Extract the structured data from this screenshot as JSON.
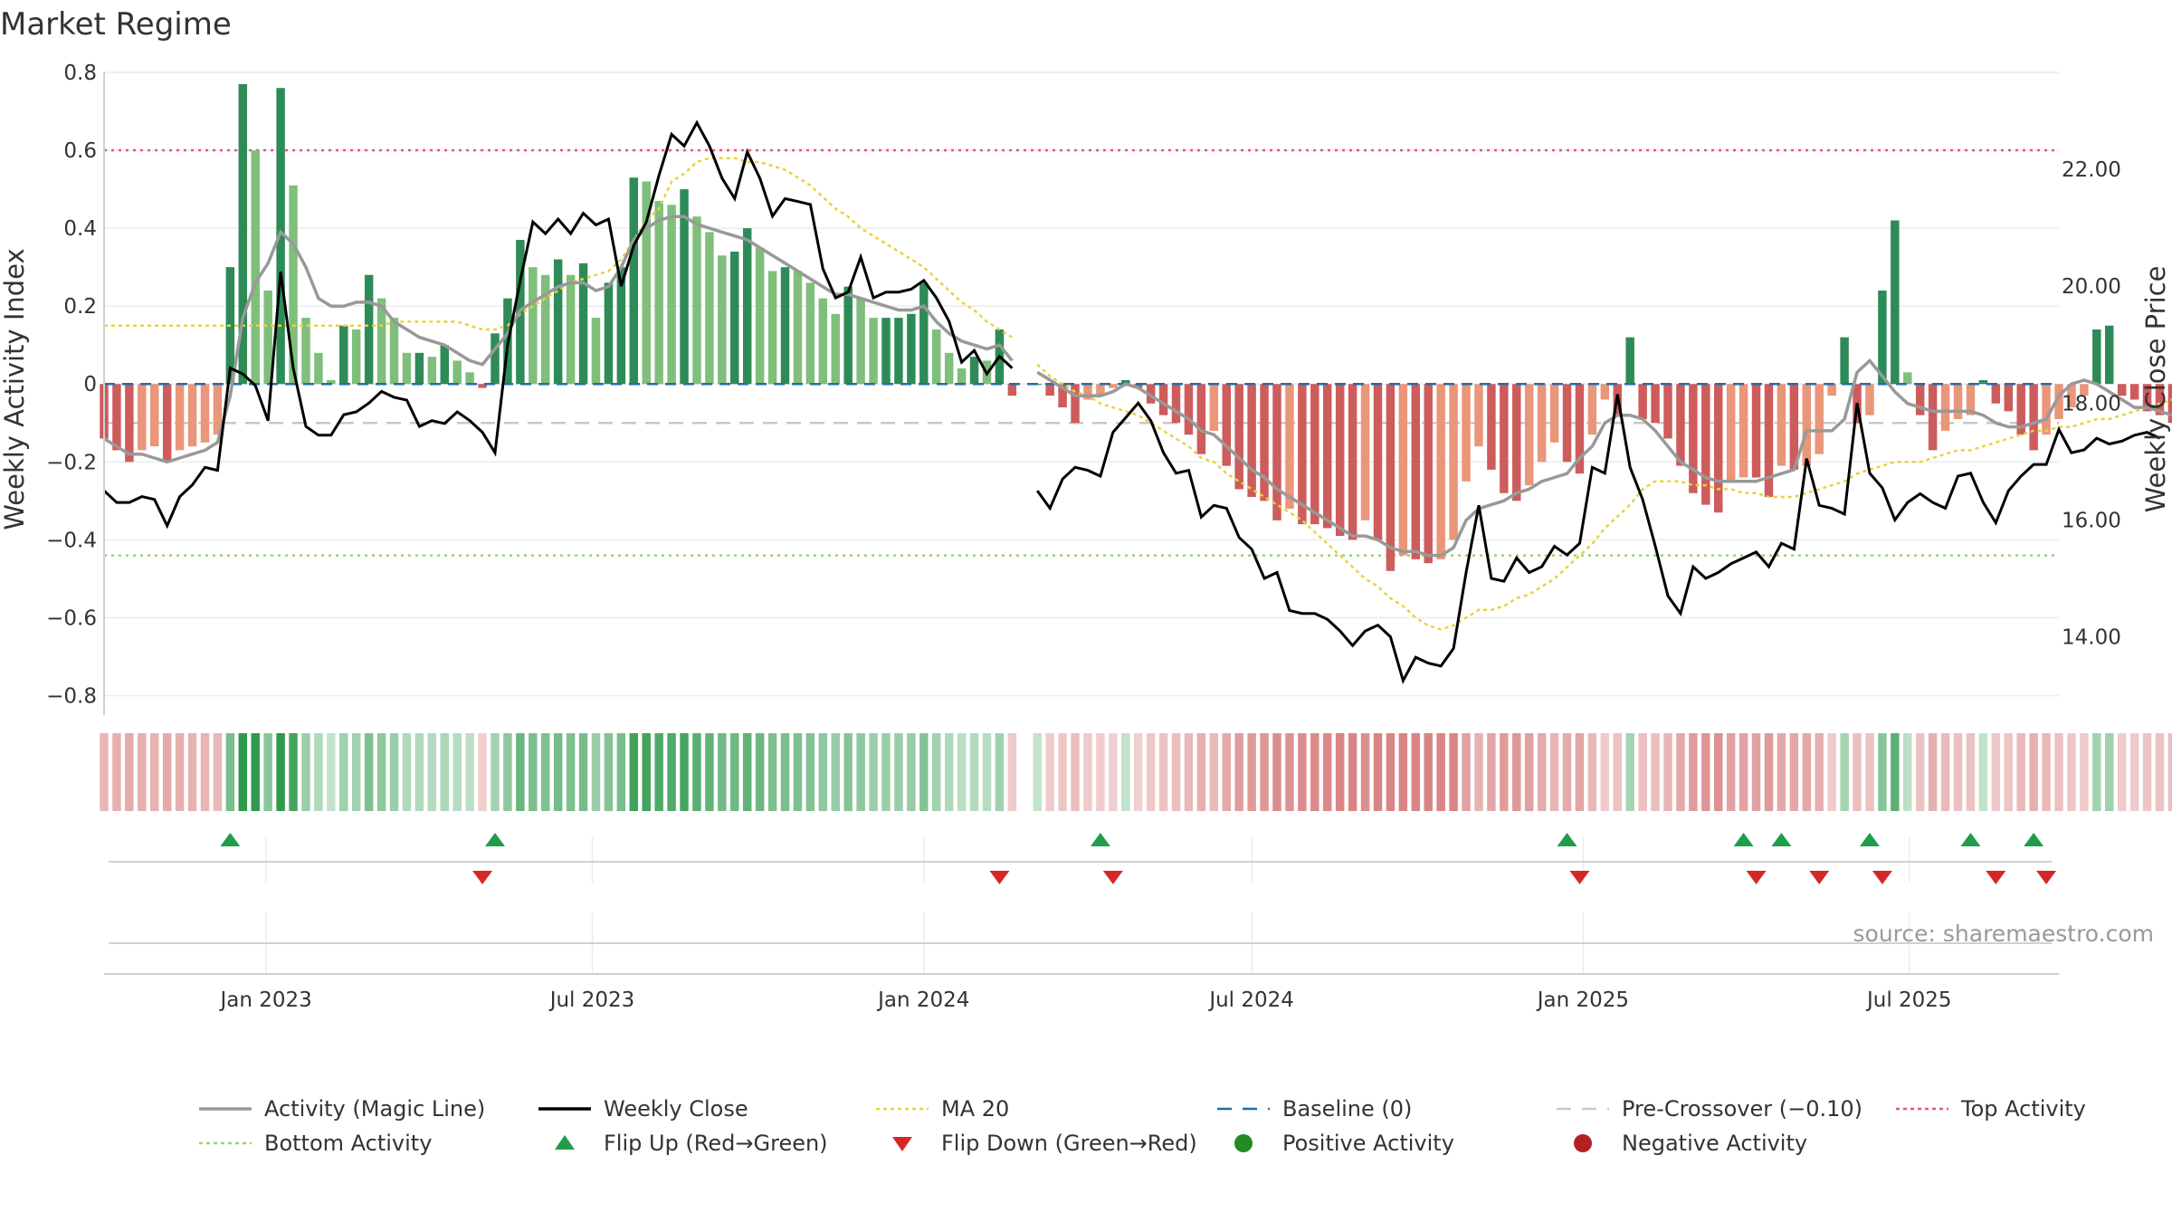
{
  "chart_data": {
    "type": "bar",
    "title": "Market Regime",
    "ylabel_left": "Weekly Activity Index",
    "ylabel_right": "Weekly Close Price",
    "source": "source: sharemaestro.com",
    "ylim_left": [
      -0.85,
      0.8
    ],
    "ylim_right": [
      12.66,
      23.66
    ],
    "yticks_left": [
      -0.8,
      -0.6,
      -0.4,
      -0.2,
      0,
      0.2,
      0.4,
      0.6,
      0.8
    ],
    "yticks_left_labels": [
      "−0.8",
      "−0.6",
      "−0.4",
      "−0.2",
      "0",
      "0.2",
      "0.4",
      "0.6",
      "0.8"
    ],
    "yticks_right": [
      14,
      16,
      18,
      20,
      22
    ],
    "yticks_right_labels": [
      "14.00",
      "16.00",
      "18.00",
      "20.00",
      "22.00"
    ],
    "x_start": "2022-10-03",
    "x_end": "2025-09-22",
    "week_step_days": 7,
    "xticks": [
      "2023-01-01",
      "2023-07-01",
      "2024-01-01",
      "2024-07-01",
      "2025-01-01",
      "2025-07-01"
    ],
    "xtick_labels": [
      "Jan 2023",
      "Jul 2023",
      "Jan 2024",
      "Jul 2024",
      "Jan 2025",
      "Jul 2025"
    ],
    "reference_lines": {
      "top_activity": 0.6,
      "bottom_activity": -0.44,
      "pre_crossover": -0.1,
      "baseline": 0
    },
    "missing_weeks": [
      73
    ],
    "activity": [
      -0.14,
      -0.17,
      -0.2,
      -0.17,
      -0.16,
      -0.2,
      -0.17,
      -0.16,
      -0.15,
      -0.13,
      0.3,
      0.77,
      0.6,
      0.24,
      0.76,
      0.51,
      0.17,
      0.08,
      0.01,
      0.15,
      0.14,
      0.28,
      0.22,
      0.17,
      0.08,
      0.08,
      0.07,
      0.1,
      0.06,
      0.03,
      -0.01,
      0.13,
      0.22,
      0.37,
      0.3,
      0.28,
      0.32,
      0.28,
      0.31,
      0.17,
      0.26,
      0.3,
      0.53,
      0.52,
      0.47,
      0.46,
      0.5,
      0.43,
      0.39,
      0.33,
      0.34,
      0.4,
      0.35,
      0.29,
      0.3,
      0.29,
      0.26,
      0.22,
      0.18,
      0.25,
      0.22,
      0.17,
      0.17,
      0.17,
      0.18,
      0.26,
      0.14,
      0.08,
      0.04,
      0.07,
      0.06,
      0.14,
      -0.03,
      -0.07,
      0,
      -0.03,
      -0.06,
      -0.1,
      -0.04,
      -0.03,
      -0.01,
      0.01,
      -0.01,
      -0.05,
      -0.08,
      -0.1,
      -0.13,
      -0.18,
      -0.12,
      -0.21,
      -0.27,
      -0.29,
      -0.3,
      -0.35,
      -0.32,
      -0.36,
      -0.36,
      -0.37,
      -0.39,
      -0.4,
      -0.35,
      -0.4,
      -0.48,
      -0.44,
      -0.45,
      -0.46,
      -0.45,
      -0.4,
      -0.25,
      -0.16,
      -0.22,
      -0.28,
      -0.3,
      -0.26,
      -0.2,
      -0.15,
      -0.2,
      -0.23,
      -0.13,
      -0.04,
      -0.08,
      0.12,
      -0.09,
      -0.1,
      -0.14,
      -0.21,
      -0.28,
      -0.31,
      -0.33,
      -0.25,
      -0.24,
      -0.24,
      -0.29,
      -0.21,
      -0.22,
      -0.21,
      -0.18,
      -0.03,
      0.12,
      -0.1,
      -0.08,
      0.24,
      0.42,
      0.03,
      -0.08,
      -0.17,
      -0.12,
      -0.09,
      -0.08,
      0.01,
      -0.05,
      -0.07,
      -0.13,
      -0.17,
      -0.13,
      -0.09,
      -0.06,
      -0.03,
      0.14,
      0.15,
      -0.03,
      -0.04,
      -0.07,
      -0.08,
      -0.1,
      0.01,
      -0.09,
      -0.09,
      -0.1
    ],
    "close": [
      16.5,
      16.3,
      16.3,
      16.4,
      16.35,
      15.9,
      16.4,
      16.6,
      16.9,
      16.85,
      18.6,
      18.5,
      18.3,
      17.7,
      20.25,
      18.6,
      17.6,
      17.45,
      17.45,
      17.8,
      17.85,
      18,
      18.2,
      18.1,
      18.05,
      17.6,
      17.7,
      17.65,
      17.85,
      17.7,
      17.5,
      17.15,
      19,
      20.1,
      21.1,
      20.9,
      21.15,
      20.9,
      21.25,
      21.05,
      21.15,
      20.0,
      20.7,
      21.1,
      21.9,
      22.6,
      22.4,
      22.8,
      22.4,
      21.85,
      21.5,
      22.3,
      21.85,
      21.2,
      21.5,
      21.45,
      21.4,
      20.3,
      19.8,
      19.9,
      20.5,
      19.8,
      19.9,
      19.9,
      19.95,
      20.1,
      19.8,
      19.4,
      18.7,
      18.9,
      18.5,
      18.8,
      18.6,
      18.5,
      16.5,
      16.2,
      16.7,
      16.9,
      16.85,
      16.75,
      17.5,
      17.75,
      18.0,
      17.7,
      17.15,
      16.8,
      16.85,
      16.05,
      16.25,
      16.2,
      15.7,
      15.5,
      15.0,
      15.1,
      14.45,
      14.4,
      14.4,
      14.3,
      14.1,
      13.85,
      14.1,
      14.2,
      14.0,
      13.25,
      13.65,
      13.55,
      13.5,
      13.8,
      15.1,
      16.25,
      15.0,
      14.95,
      15.35,
      15.1,
      15.2,
      15.55,
      15.4,
      15.6,
      16.9,
      16.8,
      18.15,
      16.9,
      16.35,
      15.55,
      14.7,
      14.4,
      15.2,
      15.0,
      15.1,
      15.25,
      15.35,
      15.45,
      15.2,
      15.6,
      15.5,
      17.05,
      16.25,
      16.2,
      16.1,
      18.0,
      16.8,
      16.55,
      16.0,
      16.3,
      16.45,
      16.3,
      16.2,
      16.75,
      16.8,
      16.3,
      15.95,
      16.5,
      16.75,
      16.95,
      16.95,
      17.55,
      17.15,
      17.2,
      17.4,
      17.3,
      17.35,
      17.45,
      17.5,
      17.4
    ],
    "magic": [
      -0.14,
      -0.16,
      -0.18,
      -0.18,
      -0.19,
      -0.2,
      -0.19,
      -0.18,
      -0.17,
      -0.15,
      -0.03,
      0.17,
      0.26,
      0.31,
      0.39,
      0.36,
      0.3,
      0.22,
      0.2,
      0.2,
      0.21,
      0.21,
      0.2,
      0.16,
      0.14,
      0.12,
      0.11,
      0.1,
      0.08,
      0.06,
      0.05,
      0.09,
      0.13,
      0.19,
      0.21,
      0.23,
      0.25,
      0.26,
      0.26,
      0.24,
      0.25,
      0.3,
      0.37,
      0.4,
      0.42,
      0.43,
      0.43,
      0.41,
      0.4,
      0.39,
      0.38,
      0.37,
      0.35,
      0.33,
      0.31,
      0.29,
      0.27,
      0.25,
      0.23,
      0.23,
      0.22,
      0.21,
      0.2,
      0.19,
      0.19,
      0.2,
      0.16,
      0.13,
      0.11,
      0.1,
      0.09,
      0.1,
      0.06,
      0.04,
      0.03,
      0.01,
      -0.01,
      -0.03,
      -0.03,
      -0.03,
      -0.02,
      0.0,
      -0.01,
      -0.03,
      -0.05,
      -0.07,
      -0.09,
      -0.12,
      -0.13,
      -0.16,
      -0.19,
      -0.22,
      -0.24,
      -0.27,
      -0.29,
      -0.31,
      -0.33,
      -0.35,
      -0.37,
      -0.39,
      -0.39,
      -0.4,
      -0.42,
      -0.43,
      -0.43,
      -0.44,
      -0.44,
      -0.42,
      -0.35,
      -0.32,
      -0.31,
      -0.3,
      -0.28,
      -0.27,
      -0.25,
      -0.24,
      -0.23,
      -0.19,
      -0.16,
      -0.1,
      -0.08,
      -0.08,
      -0.09,
      -0.12,
      -0.16,
      -0.2,
      -0.22,
      -0.24,
      -0.25,
      -0.25,
      -0.25,
      -0.25,
      -0.24,
      -0.23,
      -0.22,
      -0.12,
      -0.12,
      -0.12,
      -0.09,
      0.03,
      0.06,
      0.02,
      -0.02,
      -0.05,
      -0.06,
      -0.07,
      -0.07,
      -0.07,
      -0.07,
      -0.08,
      -0.1,
      -0.11,
      -0.11,
      -0.1,
      -0.09,
      -0.03,
      0.0,
      0.01,
      0.0,
      -0.02,
      -0.04,
      -0.06,
      -0.06,
      -0.07,
      -0.08,
      -0.09
    ],
    "ma20": [
      0.15,
      0.15,
      0.15,
      0.15,
      0.15,
      0.15,
      0.15,
      0.15,
      0.15,
      0.15,
      0.15,
      0.15,
      0.15,
      0.15,
      0.15,
      0.15,
      0.15,
      0.15,
      0.15,
      0.15,
      0.15,
      0.15,
      0.15,
      0.16,
      0.16,
      0.16,
      0.16,
      0.16,
      0.16,
      0.15,
      0.14,
      0.14,
      0.15,
      0.18,
      0.2,
      0.22,
      0.24,
      0.26,
      0.27,
      0.28,
      0.29,
      0.32,
      0.37,
      0.42,
      0.45,
      0.52,
      0.54,
      0.57,
      0.58,
      0.58,
      0.58,
      0.57,
      0.57,
      0.56,
      0.55,
      0.53,
      0.51,
      0.48,
      0.45,
      0.43,
      0.4,
      0.38,
      0.36,
      0.34,
      0.32,
      0.3,
      0.27,
      0.24,
      0.21,
      0.19,
      0.16,
      0.14,
      0.12,
      0.08,
      0.05,
      0.02,
      0.0,
      -0.02,
      -0.03,
      -0.05,
      -0.06,
      -0.07,
      -0.08,
      -0.1,
      -0.12,
      -0.14,
      -0.16,
      -0.19,
      -0.2,
      -0.23,
      -0.25,
      -0.27,
      -0.29,
      -0.31,
      -0.33,
      -0.35,
      -0.38,
      -0.41,
      -0.44,
      -0.47,
      -0.5,
      -0.52,
      -0.55,
      -0.57,
      -0.6,
      -0.62,
      -0.63,
      -0.62,
      -0.6,
      -0.58,
      -0.58,
      -0.57,
      -0.55,
      -0.54,
      -0.52,
      -0.5,
      -0.47,
      -0.44,
      -0.41,
      -0.37,
      -0.34,
      -0.31,
      -0.27,
      -0.25,
      -0.25,
      -0.25,
      -0.26,
      -0.26,
      -0.27,
      -0.27,
      -0.28,
      -0.28,
      -0.29,
      -0.29,
      -0.29,
      -0.28,
      -0.27,
      -0.26,
      -0.25,
      -0.23,
      -0.22,
      -0.21,
      -0.2,
      -0.2,
      -0.2,
      -0.19,
      -0.18,
      -0.17,
      -0.17,
      -0.16,
      -0.15,
      -0.14,
      -0.13,
      -0.12,
      -0.12,
      -0.11,
      -0.11,
      -0.1,
      -0.09,
      -0.09,
      -0.08,
      -0.07,
      -0.06,
      -0.05,
      -0.04,
      -0.03,
      -0.02,
      -0.01
    ],
    "flip_up_weeks": [
      10,
      31,
      79,
      116,
      130,
      133,
      140,
      148,
      153
    ],
    "flip_down_weeks": [
      30,
      71,
      80,
      117,
      131,
      136,
      141,
      150,
      154
    ],
    "colors": {
      "green_dark": "#2e8b57",
      "green_light": "#7fbf7b",
      "red_dark": "#cd5c5c",
      "red_light": "#e9967a",
      "close_line": "#000000",
      "magic_line": "#999999",
      "ma20_line": "#e8d33a",
      "baseline": "#1f6fa8",
      "pre_crossover": "#c8c8c8",
      "top_activity": "#e8557a",
      "bottom_activity": "#9bd46a",
      "flip_up": "#1e9e4a",
      "flip_down": "#d62728",
      "positive_activity": "#228b22",
      "negative_activity": "#b22222"
    },
    "legend": [
      {
        "label": "Activity (Magic Line)",
        "kind": "line",
        "color": "#999999"
      },
      {
        "label": "Weekly Close",
        "kind": "line",
        "color": "#000000"
      },
      {
        "label": "MA 20",
        "kind": "dotted",
        "color": "#e8d33a"
      },
      {
        "label": "Baseline (0)",
        "kind": "dashed",
        "color": "#1f6fa8"
      },
      {
        "label": "Pre-Crossover (−0.10)",
        "kind": "dashed",
        "color": "#c8c8c8"
      },
      {
        "label": "Top Activity",
        "kind": "dotted",
        "color": "#e8557a"
      },
      {
        "label": "Bottom Activity",
        "kind": "dotted",
        "color": "#9bd46a"
      },
      {
        "label": "Flip Up (Red→Green)",
        "kind": "tri-up",
        "color": "#1e9e4a"
      },
      {
        "label": "Flip Down (Green→Red)",
        "kind": "tri-down",
        "color": "#d62728"
      },
      {
        "label": "Positive Activity",
        "kind": "dot",
        "color": "#228b22"
      },
      {
        "label": "Negative Activity",
        "kind": "dot",
        "color": "#b22222"
      }
    ]
  }
}
